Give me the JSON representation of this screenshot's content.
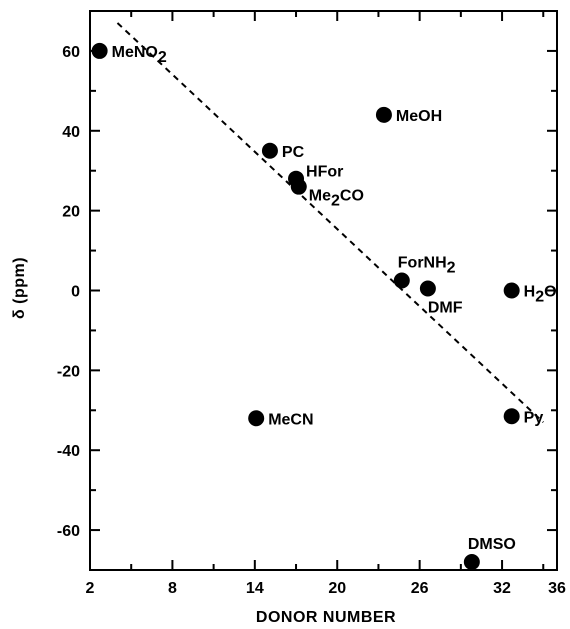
{
  "chart_data": {
    "type": "scatter",
    "title": "",
    "xlabel": "DONOR NUMBER",
    "ylabel": "δ (ppm)",
    "xlim": [
      2,
      36
    ],
    "ylim": [
      -70,
      70
    ],
    "xticks": [
      2,
      8,
      14,
      20,
      26,
      32,
      36
    ],
    "xtick_labels": [
      "2",
      "8",
      "14",
      "20",
      "26",
      "32",
      "36"
    ],
    "yticks": [
      60,
      40,
      20,
      0,
      -20,
      -40,
      -60
    ],
    "ytick_labels": [
      "60",
      "40",
      "20",
      "0",
      "-20",
      "-40",
      "-60"
    ],
    "grid": false,
    "points": [
      {
        "label": "MeNO",
        "sub": "2",
        "suffix": "",
        "x": 2.7,
        "y": 60,
        "anchor": "right"
      },
      {
        "label": "MeOH",
        "sub": "",
        "suffix": "",
        "x": 23.4,
        "y": 44,
        "anchor": "right"
      },
      {
        "label": "PC",
        "sub": "",
        "suffix": "",
        "x": 15.1,
        "y": 35,
        "anchor": "right"
      },
      {
        "label": "HFor",
        "sub": "",
        "suffix": "",
        "x": 17.0,
        "y": 28,
        "anchor": "right-up"
      },
      {
        "label": "Me",
        "sub": "2",
        "suffix": "CO",
        "x": 17.2,
        "y": 26,
        "anchor": "right-down"
      },
      {
        "label": "ForNH",
        "sub": "2",
        "suffix": "",
        "x": 24.7,
        "y": 2.5,
        "anchor": "above"
      },
      {
        "label": "DMF",
        "sub": "",
        "suffix": "",
        "x": 26.6,
        "y": 0.5,
        "anchor": "below"
      },
      {
        "label": "H",
        "sub": "2",
        "suffix": "O",
        "x": 32.7,
        "y": 0,
        "anchor": "right"
      },
      {
        "label": "MeCN",
        "sub": "",
        "suffix": "",
        "x": 14.1,
        "y": -32,
        "anchor": "right"
      },
      {
        "label": "Py",
        "sub": "",
        "suffix": "",
        "x": 32.7,
        "y": -31.5,
        "anchor": "right"
      },
      {
        "label": "DMSO",
        "sub": "",
        "suffix": "",
        "x": 29.8,
        "y": -68,
        "anchor": "above"
      }
    ],
    "fit_line": {
      "x": [
        4.0,
        35.0
      ],
      "y": [
        67,
        -33
      ],
      "style": "dashed"
    }
  }
}
